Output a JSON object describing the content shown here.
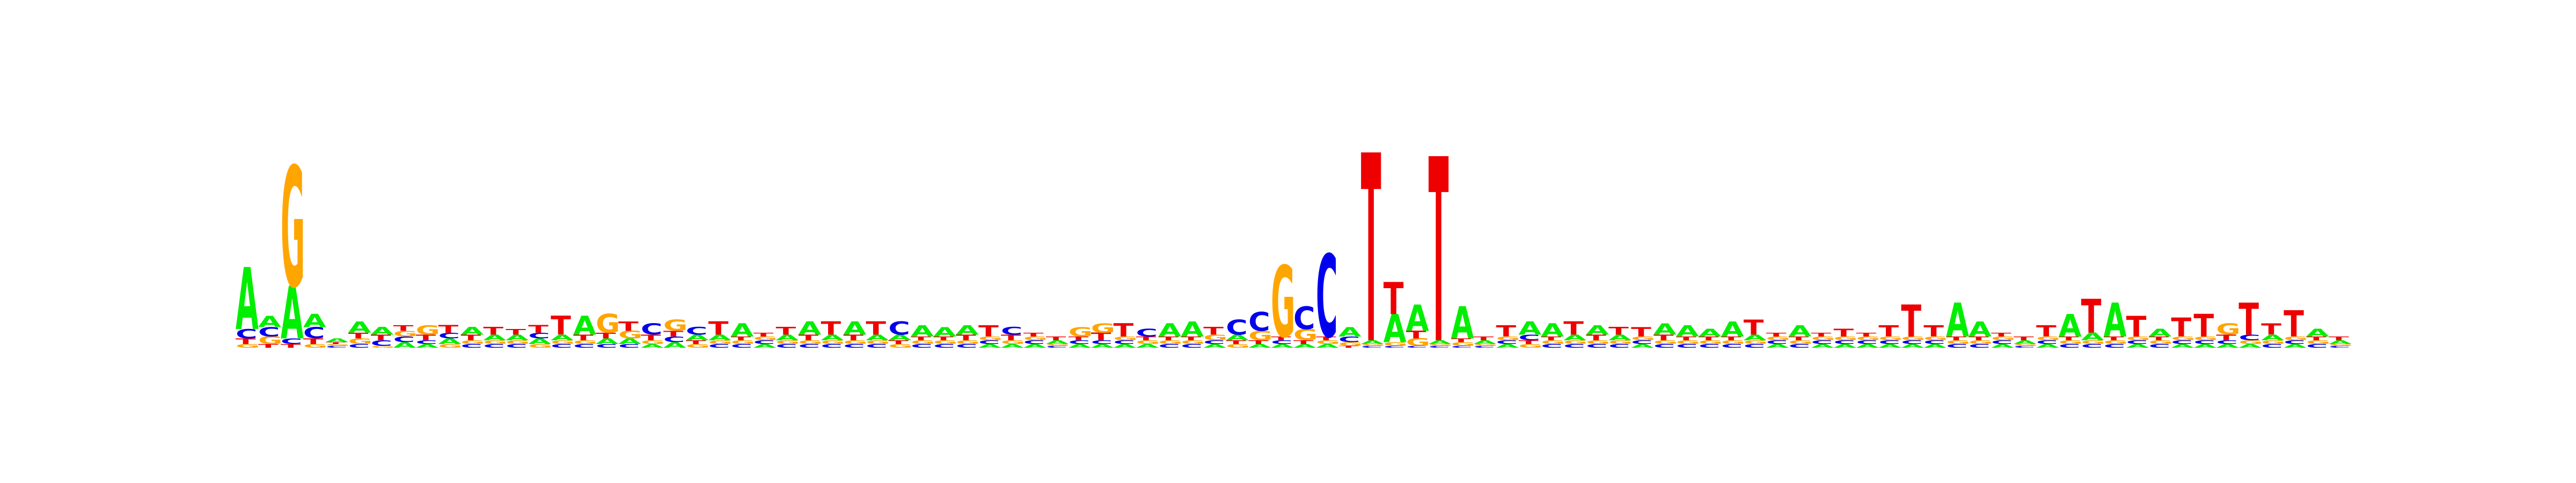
{
  "colors": {
    "A": "#00ee00",
    "C": "#0000ee",
    "G": "#ffa500",
    "T": "#ee0000"
  },
  "chart_data": {
    "type": "sequence-logo",
    "alphabet": [
      "A",
      "C",
      "G",
      "T"
    ],
    "ylim": [
      0,
      2
    ],
    "positions": [
      {
        "A": 0.33,
        "C": 0.05,
        "G": 0.02,
        "T": 0.03
      },
      {
        "A": 0.06,
        "C": 0.05,
        "G": 0.04,
        "T": 0.02
      },
      {
        "A": 0.28,
        "C": 0.03,
        "G": 0.64,
        "T": 0.02
      },
      {
        "A": 0.07,
        "C": 0.06,
        "G": 0.02,
        "T": 0.03
      },
      {
        "A": 0.02,
        "C": 0.01,
        "G": 0.01,
        "T": 0.01
      },
      {
        "A": 0.06,
        "C": 0.02,
        "G": 0.03,
        "T": 0.03
      },
      {
        "A": 0.04,
        "C": 0.03,
        "G": 0.01,
        "T": 0.03
      },
      {
        "A": 0.03,
        "C": 0.03,
        "G": 0.03,
        "T": 0.03
      },
      {
        "A": 0.02,
        "C": 0.02,
        "G": 0.05,
        "T": 0.03
      },
      {
        "A": 0.03,
        "C": 0.03,
        "G": 0.02,
        "T": 0.04
      },
      {
        "A": 0.04,
        "C": 0.02,
        "G": 0.02,
        "T": 0.03
      },
      {
        "A": 0.03,
        "C": 0.02,
        "G": 0.02,
        "T": 0.04
      },
      {
        "A": 0.03,
        "C": 0.02,
        "G": 0.02,
        "T": 0.03
      },
      {
        "A": 0.03,
        "C": 0.03,
        "G": 0.02,
        "T": 0.04
      },
      {
        "A": 0.03,
        "C": 0.02,
        "G": 0.02,
        "T": 0.1
      },
      {
        "A": 0.1,
        "C": 0.02,
        "G": 0.02,
        "T": 0.03
      },
      {
        "A": 0.03,
        "C": 0.02,
        "G": 0.1,
        "T": 0.03
      },
      {
        "A": 0.03,
        "C": 0.02,
        "G": 0.04,
        "T": 0.05
      },
      {
        "A": 0.02,
        "C": 0.06,
        "G": 0.02,
        "T": 0.03
      },
      {
        "A": 0.03,
        "C": 0.03,
        "G": 0.06,
        "T": 0.03
      },
      {
        "A": 0.03,
        "C": 0.04,
        "G": 0.02,
        "T": 0.02
      },
      {
        "A": 0.03,
        "C": 0.02,
        "G": 0.02,
        "T": 0.07
      },
      {
        "A": 0.07,
        "C": 0.02,
        "G": 0.02,
        "T": 0.02
      },
      {
        "A": 0.02,
        "C": 0.02,
        "G": 0.02,
        "T": 0.02
      },
      {
        "A": 0.03,
        "C": 0.02,
        "G": 0.02,
        "T": 0.04
      },
      {
        "A": 0.07,
        "C": 0.02,
        "G": 0.02,
        "T": 0.03
      },
      {
        "A": 0.03,
        "C": 0.02,
        "G": 0.02,
        "T": 0.07
      },
      {
        "A": 0.07,
        "C": 0.02,
        "G": 0.02,
        "T": 0.03
      },
      {
        "A": 0.03,
        "C": 0.02,
        "G": 0.02,
        "T": 0.07
      },
      {
        "A": 0.03,
        "C": 0.07,
        "G": 0.02,
        "T": 0.02
      },
      {
        "A": 0.06,
        "C": 0.02,
        "G": 0.02,
        "T": 0.02
      },
      {
        "A": 0.05,
        "C": 0.02,
        "G": 0.02,
        "T": 0.02
      },
      {
        "A": 0.05,
        "C": 0.02,
        "G": 0.02,
        "T": 0.03
      },
      {
        "A": 0.02,
        "C": 0.02,
        "G": 0.02,
        "T": 0.06
      },
      {
        "A": 0.02,
        "C": 0.04,
        "G": 0.02,
        "T": 0.03
      },
      {
        "A": 0.02,
        "C": 0.02,
        "G": 0.02,
        "T": 0.02
      },
      {
        "A": 0.02,
        "C": 0.01,
        "G": 0.01,
        "T": 0.02
      },
      {
        "A": 0.02,
        "C": 0.02,
        "G": 0.05,
        "T": 0.02
      },
      {
        "A": 0.02,
        "C": 0.02,
        "G": 0.05,
        "T": 0.04
      },
      {
        "A": 0.02,
        "C": 0.02,
        "G": 0.02,
        "T": 0.07
      },
      {
        "A": 0.02,
        "C": 0.04,
        "G": 0.02,
        "T": 0.02
      },
      {
        "A": 0.07,
        "C": 0.02,
        "G": 0.02,
        "T": 0.02
      },
      {
        "A": 0.08,
        "C": 0.02,
        "G": 0.02,
        "T": 0.02
      },
      {
        "A": 0.02,
        "C": 0.02,
        "G": 0.03,
        "T": 0.04
      },
      {
        "A": 0.03,
        "C": 0.08,
        "G": 0.02,
        "T": 0.02
      },
      {
        "A": 0.02,
        "C": 0.1,
        "G": 0.05,
        "T": 0.02
      },
      {
        "A": 0.02,
        "C": 0.02,
        "G": 0.38,
        "T": 0.02
      },
      {
        "A": 0.02,
        "C": 0.12,
        "G": 0.06,
        "T": 0.02
      },
      {
        "A": 0.02,
        "C": 0.44,
        "G": 0.02,
        "T": 0.02
      },
      {
        "A": 0.05,
        "C": 0.03,
        "G": 0.02,
        "T": 0.01
      },
      {
        "A": 0.02,
        "C": 0.01,
        "G": 0.01,
        "T": 1.0
      },
      {
        "A": 0.15,
        "C": 0.01,
        "G": 0.02,
        "T": 0.17
      },
      {
        "A": 0.14,
        "C": 0.01,
        "G": 0.04,
        "T": 0.04
      },
      {
        "A": 0.02,
        "C": 0.01,
        "G": 0.01,
        "T": 0.98
      },
      {
        "A": 0.17,
        "C": 0.01,
        "G": 0.02,
        "T": 0.02
      },
      {
        "A": 0.02,
        "C": 0.01,
        "G": 0.01,
        "T": 0.02
      },
      {
        "A": 0.02,
        "C": 0.02,
        "G": 0.02,
        "T": 0.06
      },
      {
        "A": 0.07,
        "C": 0.03,
        "G": 0.02,
        "T": 0.02
      },
      {
        "A": 0.07,
        "C": 0.02,
        "G": 0.02,
        "T": 0.02
      },
      {
        "A": 0.03,
        "C": 0.02,
        "G": 0.02,
        "T": 0.07
      },
      {
        "A": 0.05,
        "C": 0.02,
        "G": 0.02,
        "T": 0.03
      },
      {
        "A": 0.03,
        "C": 0.02,
        "G": 0.02,
        "T": 0.04
      },
      {
        "A": 0.02,
        "C": 0.02,
        "G": 0.02,
        "T": 0.05
      },
      {
        "A": 0.06,
        "C": 0.02,
        "G": 0.02,
        "T": 0.03
      },
      {
        "A": 0.06,
        "C": 0.02,
        "G": 0.02,
        "T": 0.02
      },
      {
        "A": 0.04,
        "C": 0.02,
        "G": 0.02,
        "T": 0.02
      },
      {
        "A": 0.08,
        "C": 0.02,
        "G": 0.02,
        "T": 0.02
      },
      {
        "A": 0.03,
        "C": 0.02,
        "G": 0.02,
        "T": 0.08
      },
      {
        "A": 0.02,
        "C": 0.02,
        "G": 0.02,
        "T": 0.02
      },
      {
        "A": 0.06,
        "C": 0.02,
        "G": 0.02,
        "T": 0.02
      },
      {
        "A": 0.02,
        "C": 0.02,
        "G": 0.02,
        "T": 0.02
      },
      {
        "A": 0.02,
        "C": 0.02,
        "G": 0.02,
        "T": 0.04
      },
      {
        "A": 0.02,
        "C": 0.02,
        "G": 0.02,
        "T": 0.02
      },
      {
        "A": 0.02,
        "C": 0.02,
        "G": 0.02,
        "T": 0.06
      },
      {
        "A": 0.02,
        "C": 0.02,
        "G": 0.02,
        "T": 0.17
      },
      {
        "A": 0.02,
        "C": 0.02,
        "G": 0.02,
        "T": 0.06
      },
      {
        "A": 0.18,
        "C": 0.02,
        "G": 0.02,
        "T": 0.02
      },
      {
        "A": 0.08,
        "C": 0.02,
        "G": 0.02,
        "T": 0.02
      },
      {
        "A": 0.02,
        "C": 0.02,
        "G": 0.02,
        "T": 0.02
      },
      {
        "A": 0.02,
        "C": 0.01,
        "G": 0.01,
        "T": 0.02
      },
      {
        "A": 0.02,
        "C": 0.02,
        "G": 0.02,
        "T": 0.06
      },
      {
        "A": 0.12,
        "C": 0.02,
        "G": 0.02,
        "T": 0.02
      },
      {
        "A": 0.04,
        "C": 0.02,
        "G": 0.02,
        "T": 0.18
      },
      {
        "A": 0.18,
        "C": 0.02,
        "G": 0.02,
        "T": 0.02
      },
      {
        "A": 0.02,
        "C": 0.02,
        "G": 0.02,
        "T": 0.11
      },
      {
        "A": 0.04,
        "C": 0.02,
        "G": 0.02,
        "T": 0.02
      },
      {
        "A": 0.02,
        "C": 0.02,
        "G": 0.02,
        "T": 0.1
      },
      {
        "A": 0.02,
        "C": 0.02,
        "G": 0.02,
        "T": 0.12
      },
      {
        "A": 0.02,
        "C": 0.02,
        "G": 0.06,
        "T": 0.03
      },
      {
        "A": 0.02,
        "C": 0.03,
        "G": 0.02,
        "T": 0.17
      },
      {
        "A": 0.03,
        "C": 0.02,
        "G": 0.02,
        "T": 0.06
      },
      {
        "A": 0.02,
        "C": 0.02,
        "G": 0.02,
        "T": 0.14
      },
      {
        "A": 0.04,
        "C": 0.02,
        "G": 0.02,
        "T": 0.02
      },
      {
        "A": 0.02,
        "C": 0.01,
        "G": 0.01,
        "T": 0.02
      }
    ]
  }
}
